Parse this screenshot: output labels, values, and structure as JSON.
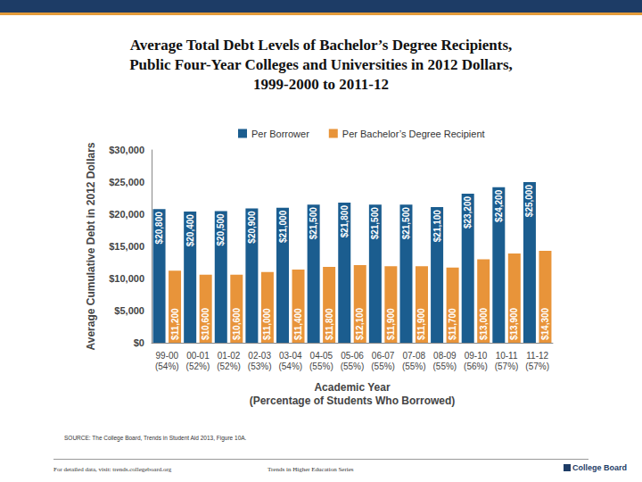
{
  "chart_data": {
    "type": "bar",
    "title": "Average Total Debt Levels of Bachelor’s Degree Recipients,\nPublic Four-Year Colleges and Universities in 2012 Dollars,\n1999-2000 to 2011-12",
    "x_label": "Academic Year\n(Percentage of Students Who Borrowed)",
    "y_label": "Average Cumulative Debt in 2012 Dollars",
    "categories": [
      "99-00\n(54%)",
      "00-01\n(52%)",
      "01-02\n(52%)",
      "02-03\n(53%)",
      "03-04\n(54%)",
      "04-05\n(55%)",
      "05-06\n(55%)",
      "06-07\n(55%)",
      "07-08\n(55%)",
      "08-09\n(55%)",
      "09-10\n(56%)",
      "10-11\n(57%)",
      "11-12\n(57%)"
    ],
    "series": [
      {
        "name": "Per Borrower",
        "color": "#1b5d8f",
        "values": [
          20800,
          20400,
          20500,
          20900,
          21000,
          21500,
          21800,
          21500,
          21500,
          21100,
          23200,
          24200,
          25000
        ],
        "value_labels": [
          "$20,800",
          "$20,400",
          "$20,500",
          "$20,900",
          "$21,000",
          "$21,500",
          "$21,800",
          "$21,500",
          "$21,500",
          "$21,100",
          "$23,200",
          "$24,200",
          "$25,000"
        ]
      },
      {
        "name": "Per Bachelor’s Degree Recipient",
        "color": "#e8943a",
        "values": [
          11200,
          10600,
          10600,
          11000,
          11400,
          11800,
          12100,
          11900,
          11900,
          11700,
          13000,
          13900,
          14300
        ],
        "value_labels": [
          "$11,200",
          "$10,600",
          "$10,600",
          "$11,000",
          "$11,400",
          "$11,800",
          "$12,100",
          "$11,900",
          "$11,900",
          "$11,700",
          "$13,000",
          "$13,900",
          "$14,300"
        ]
      }
    ],
    "ylim": [
      0,
      30000
    ],
    "yticks": [
      {
        "value": 0,
        "label": "$0"
      },
      {
        "value": 5000,
        "label": "$5,000"
      },
      {
        "value": 10000,
        "label": "$10,000"
      },
      {
        "value": 15000,
        "label": "$15,000"
      },
      {
        "value": 20000,
        "label": "$20,000"
      },
      {
        "value": 25000,
        "label": "$25,000"
      },
      {
        "value": 30000,
        "label": "$30,000"
      }
    ],
    "grid": false,
    "legend": "top",
    "data_labels": true
  },
  "source": "SOURCE: The College Board, Trends in Student Aid 2013, Figure 10A.",
  "footer_left": "For detailed data, visit: trends.collegeboard.org",
  "footer_center": "Trends in Higher Education Series",
  "logo": "College Board"
}
